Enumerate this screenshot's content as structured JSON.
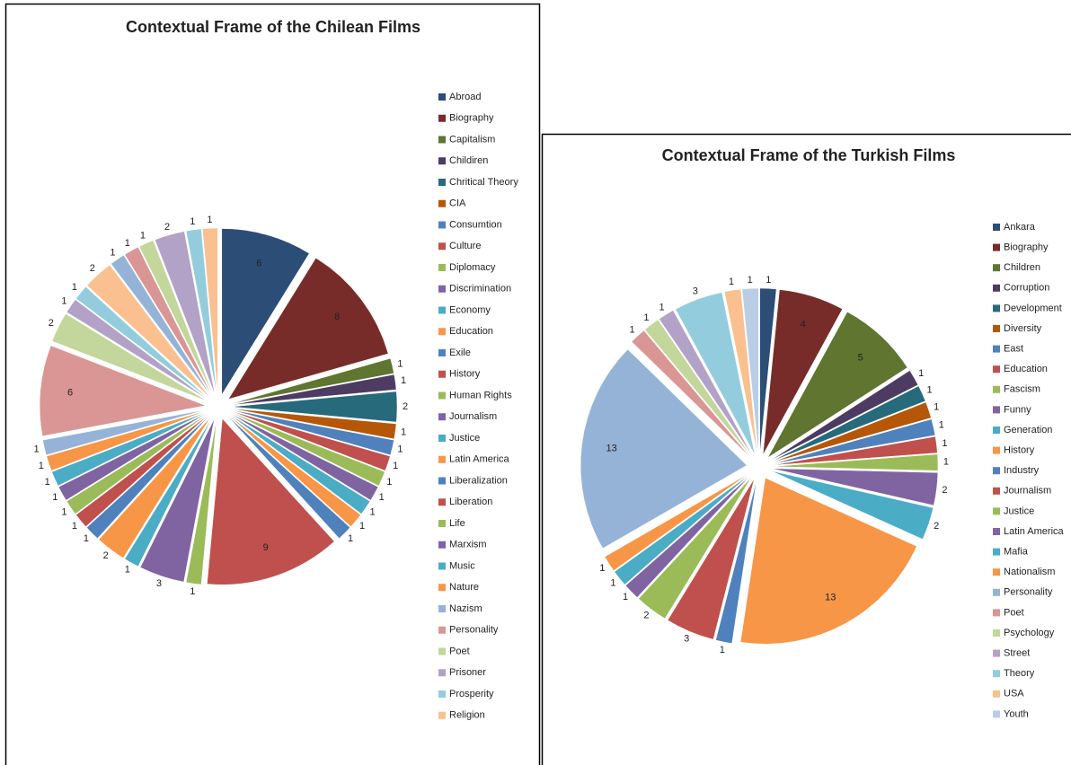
{
  "chart_data": [
    {
      "type": "pie",
      "title": "Contextual Frame of the Chilean Films",
      "categories": [
        "Abroad",
        "Biography",
        "Capitalism",
        "Childiren",
        "Chritical Theory",
        "CIA",
        "Consumtion",
        "Culture",
        "Diplomacy",
        "Discrimination",
        "Economy",
        "Education",
        "Exile",
        "History",
        "Human Rights",
        "Journalism",
        "Justice",
        "Latin America",
        "Liberalization",
        "Liberation",
        "Life",
        "Marxism",
        "Music",
        "Nature",
        "Nazism",
        "Personality",
        "Poet",
        "Prisoner",
        "Prosperity",
        "Religion",
        null,
        null,
        null,
        null,
        null,
        null
      ],
      "values": [
        6,
        8,
        1,
        1,
        2,
        1,
        1,
        1,
        1,
        1,
        1,
        1,
        1,
        9,
        1,
        3,
        1,
        2,
        1,
        1,
        1,
        1,
        1,
        1,
        1,
        6,
        2,
        1,
        1,
        2,
        1,
        1,
        1,
        2,
        1,
        1
      ],
      "colors": [
        "#2c4d75",
        "#772c2a",
        "#5f7530",
        "#4d3b62",
        "#276a7c",
        "#b65708",
        "#4f81bd",
        "#c0504d",
        "#9bbb59",
        "#8064a2",
        "#4bacc6",
        "#f79646",
        "#4f81bd",
        "#c0504d",
        "#9bbb59",
        "#8064a2",
        "#4bacc6",
        "#f79646",
        "#4f81bd",
        "#c0504d",
        "#9bbb59",
        "#8064a2",
        "#4bacc6",
        "#f79646",
        "#95b3d7",
        "#d99694",
        "#c3d69b",
        "#b3a2c7",
        "#93cddd",
        "#fac090",
        "#95b3d7",
        "#d99694",
        "#c3d69b",
        "#b3a2c7",
        "#93cddd",
        "#fac090"
      ]
    },
    {
      "type": "pie",
      "title": "Contextual Frame of the Turkish Films",
      "categories": [
        "Ankara",
        "Biography",
        "Children",
        "Corruption",
        "Development",
        "Diversity",
        "East",
        "Education",
        "Fascism",
        "Funny",
        "Generation",
        "History",
        "Industry",
        "Journalism",
        "Justice",
        "Latin America",
        "Mafia",
        "Nationalism",
        "Personality",
        "Poet",
        "Psychology",
        "Street",
        "Theory",
        "USA",
        "Youth"
      ],
      "values": [
        1,
        4,
        5,
        1,
        1,
        1,
        1,
        1,
        1,
        2,
        2,
        13,
        1,
        3,
        2,
        1,
        1,
        1,
        13,
        1,
        1,
        1,
        3,
        1,
        1
      ],
      "colors": [
        "#2c4d75",
        "#772c2a",
        "#5f7530",
        "#4d3b62",
        "#276a7c",
        "#b65708",
        "#4f81bd",
        "#c0504d",
        "#9bbb59",
        "#8064a2",
        "#4bacc6",
        "#f79646",
        "#4f81bd",
        "#c0504d",
        "#9bbb59",
        "#8064a2",
        "#4bacc6",
        "#f79646",
        "#95b3d7",
        "#d99694",
        "#c3d69b",
        "#b3a2c7",
        "#93cddd",
        "#fac090",
        "#b9cde5"
      ]
    }
  ]
}
